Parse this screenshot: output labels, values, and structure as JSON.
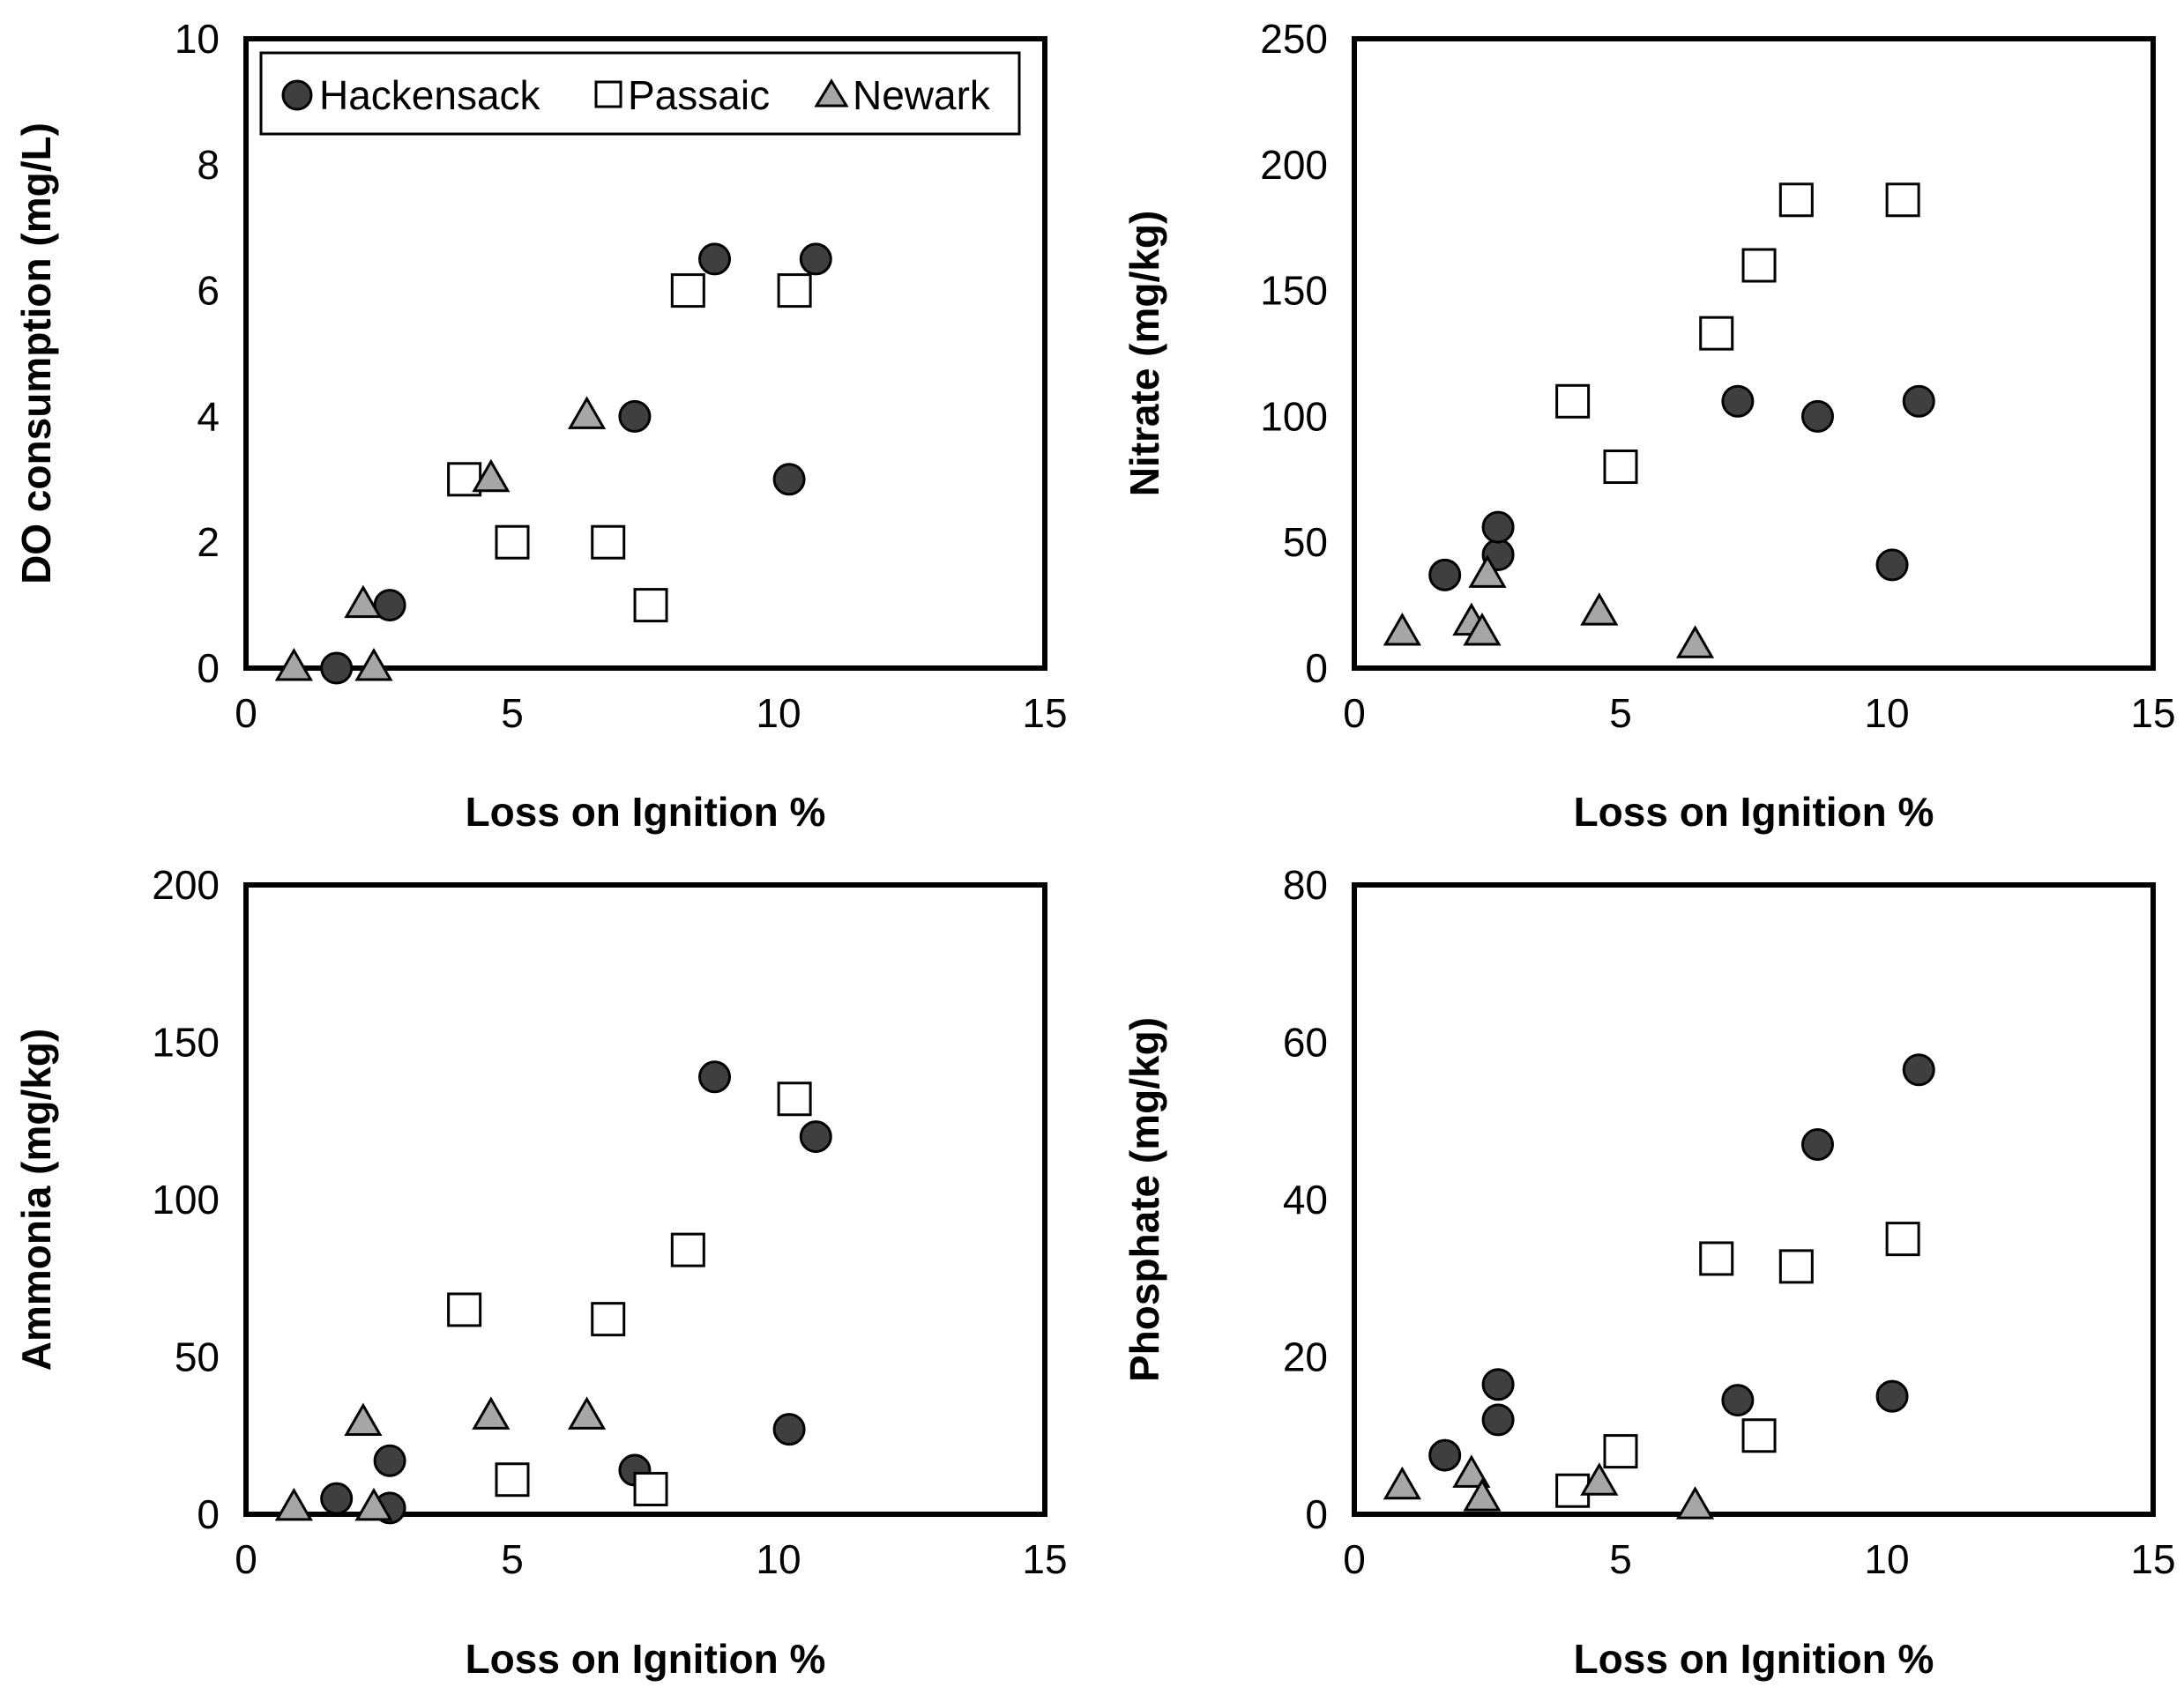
{
  "legend": {
    "entries": [
      {
        "name": "Hackensack",
        "marker": "circle"
      },
      {
        "name": "Passaic",
        "marker": "square"
      },
      {
        "name": "Newark",
        "marker": "triangle"
      }
    ]
  },
  "colors": {
    "hackensack_fill": "#3f3f3f",
    "passaic_fill": "#ffffff",
    "newark_fill": "#a6a6a6",
    "stroke": "#000000"
  },
  "chart_data": [
    {
      "type": "scatter",
      "position": "top-left",
      "title": "",
      "xlabel": "Loss on Ignition %",
      "ylabel": "DO consumption (mg/L)",
      "xlim": [
        0,
        15
      ],
      "ylim": [
        0,
        10
      ],
      "xticks": [
        0,
        5,
        10,
        15
      ],
      "yticks": [
        0,
        2,
        4,
        6,
        8,
        10
      ],
      "legend": "top",
      "series": [
        {
          "name": "Hackensack",
          "marker": "circle",
          "points": [
            [
              1.7,
              0
            ],
            [
              2.7,
              1
            ],
            [
              7.3,
              4
            ],
            [
              8.8,
              6.5
            ],
            [
              10.2,
              3
            ],
            [
              10.7,
              6.5
            ]
          ]
        },
        {
          "name": "Passaic",
          "marker": "square",
          "points": [
            [
              4.1,
              3
            ],
            [
              5.0,
              2
            ],
            [
              6.8,
              2
            ],
            [
              7.6,
              1
            ],
            [
              8.3,
              6
            ],
            [
              10.3,
              6
            ]
          ]
        },
        {
          "name": "Newark",
          "marker": "triangle",
          "points": [
            [
              0.9,
              0
            ],
            [
              2.2,
              1
            ],
            [
              2.4,
              0
            ],
            [
              4.6,
              3
            ],
            [
              6.4,
              4
            ]
          ]
        }
      ]
    },
    {
      "type": "scatter",
      "position": "top-right",
      "title": "",
      "xlabel": "Loss on Ignition %",
      "ylabel": "Nitrate (mg/kg)",
      "xlim": [
        0,
        15
      ],
      "ylim": [
        0,
        250
      ],
      "xticks": [
        0,
        5,
        10,
        15
      ],
      "yticks": [
        0,
        50,
        100,
        150,
        200,
        250
      ],
      "series": [
        {
          "name": "Hackensack",
          "marker": "circle",
          "points": [
            [
              1.7,
              37
            ],
            [
              2.7,
              45
            ],
            [
              2.7,
              56
            ],
            [
              7.2,
              106
            ],
            [
              8.7,
              100
            ],
            [
              10.1,
              41
            ],
            [
              10.6,
              106
            ]
          ]
        },
        {
          "name": "Passaic",
          "marker": "square",
          "points": [
            [
              4.1,
              106
            ],
            [
              5.0,
              80
            ],
            [
              6.8,
              133
            ],
            [
              7.6,
              160
            ],
            [
              8.3,
              186
            ],
            [
              10.3,
              186
            ]
          ]
        },
        {
          "name": "Newark",
          "marker": "triangle",
          "points": [
            [
              0.9,
              14
            ],
            [
              2.2,
              18
            ],
            [
              2.4,
              14
            ],
            [
              2.5,
              37
            ],
            [
              4.6,
              22
            ],
            [
              6.4,
              9
            ]
          ]
        }
      ]
    },
    {
      "type": "scatter",
      "position": "bottom-left",
      "title": "",
      "xlabel": "Loss on Ignition %",
      "ylabel": "Ammonia (mg/kg)",
      "xlim": [
        0,
        15
      ],
      "ylim": [
        0,
        200
      ],
      "xticks": [
        0,
        5,
        10,
        15
      ],
      "yticks": [
        0,
        50,
        100,
        150,
        200
      ],
      "series": [
        {
          "name": "Hackensack",
          "marker": "circle",
          "points": [
            [
              1.7,
              5
            ],
            [
              2.7,
              2
            ],
            [
              2.7,
              17
            ],
            [
              7.3,
              14
            ],
            [
              8.8,
              139
            ],
            [
              10.2,
              27
            ],
            [
              10.7,
              120
            ]
          ]
        },
        {
          "name": "Passaic",
          "marker": "square",
          "points": [
            [
              4.1,
              65
            ],
            [
              5.0,
              11
            ],
            [
              6.8,
              62
            ],
            [
              7.6,
              8
            ],
            [
              8.3,
              84
            ],
            [
              10.3,
              132
            ]
          ]
        },
        {
          "name": "Newark",
          "marker": "triangle",
          "points": [
            [
              0.9,
              2
            ],
            [
              2.2,
              29
            ],
            [
              2.4,
              2
            ],
            [
              4.6,
              31
            ],
            [
              6.4,
              31
            ]
          ]
        }
      ]
    },
    {
      "type": "scatter",
      "position": "bottom-right",
      "title": "",
      "xlabel": "Loss on Ignition %",
      "ylabel": "Phosphate (mg/kg)",
      "xlim": [
        0,
        15
      ],
      "ylim": [
        0,
        80
      ],
      "xticks": [
        0,
        5,
        10,
        15
      ],
      "yticks": [
        0,
        20,
        40,
        60,
        80
      ],
      "series": [
        {
          "name": "Hackensack",
          "marker": "circle",
          "points": [
            [
              1.7,
              7.5
            ],
            [
              2.7,
              12
            ],
            [
              2.7,
              16.5
            ],
            [
              7.2,
              14.5
            ],
            [
              8.7,
              47
            ],
            [
              10.1,
              15
            ],
            [
              10.6,
              56.5
            ]
          ]
        },
        {
          "name": "Passaic",
          "marker": "square",
          "points": [
            [
              4.1,
              3
            ],
            [
              5.0,
              8
            ],
            [
              6.8,
              32.5
            ],
            [
              7.6,
              10
            ],
            [
              8.3,
              31.5
            ],
            [
              10.3,
              35
            ]
          ]
        },
        {
          "name": "Newark",
          "marker": "triangle",
          "points": [
            [
              0.9,
              3.5
            ],
            [
              2.2,
              5
            ],
            [
              2.4,
              2
            ],
            [
              4.6,
              4
            ],
            [
              6.4,
              1
            ]
          ]
        }
      ]
    }
  ]
}
